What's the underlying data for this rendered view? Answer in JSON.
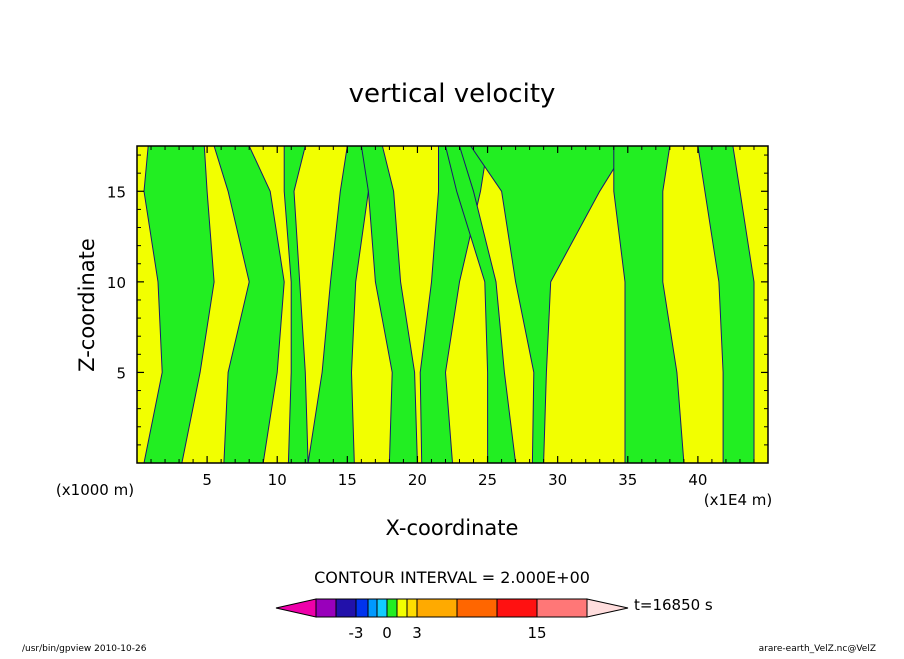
{
  "chart_data": {
    "type": "contour",
    "title": "vertical velocity",
    "xlabel": "X-coordinate",
    "ylabel": "Z-coordinate",
    "x_unit": "(x1E4 m)",
    "y_unit": "(x1000 m)",
    "xlim": [
      0,
      45
    ],
    "ylim": [
      0,
      17.5
    ],
    "x_ticks": [
      5,
      10,
      15,
      20,
      25,
      30,
      35,
      40
    ],
    "y_ticks": [
      5,
      10,
      15
    ],
    "contour_interval_text": "CONTOUR INTERVAL = 2.000E+00",
    "time_label": "t=16850 s",
    "field_colors": {
      "positive": "#f2ff00",
      "negative": "#22ee22",
      "contour": "#1a1a6e"
    },
    "green_regions_x_ranges_at_levels": {
      "levels": [
        0,
        5,
        10,
        15,
        17.5
      ],
      "bands": [
        [
          [
            0.5,
            3.2
          ],
          [
            1.8,
            4.5
          ],
          [
            1.5,
            5.5
          ],
          [
            0.5,
            5.0
          ],
          [
            0.8,
            4.8
          ]
        ],
        [
          [
            6.2,
            9.0
          ],
          [
            6.5,
            10.0
          ],
          [
            8.0,
            10.5
          ],
          [
            6.5,
            9.5
          ],
          [
            5.5,
            8.0
          ]
        ],
        [
          [
            10.8,
            12.2
          ],
          [
            11.0,
            12.0
          ],
          [
            11.0,
            11.6
          ],
          [
            10.5,
            11.2
          ],
          [
            10.5,
            12.0
          ]
        ],
        [
          [
            12.2,
            15.5
          ],
          [
            13.2,
            15.3
          ],
          [
            13.8,
            15.6
          ],
          [
            14.5,
            16.5
          ],
          [
            15.0,
            16.2
          ]
        ],
        [
          [
            18.0,
            20.0
          ],
          [
            18.2,
            19.8
          ],
          [
            17.0,
            18.8
          ],
          [
            16.5,
            18.3
          ],
          [
            16.0,
            17.5
          ]
        ],
        [
          [
            20.3,
            22.5
          ],
          [
            20.2,
            22.0
          ],
          [
            21.0,
            23.0
          ],
          [
            21.5,
            24.5
          ],
          [
            21.5,
            25.0
          ]
        ],
        [
          [
            25.0,
            27.0
          ],
          [
            25.0,
            26.2
          ],
          [
            24.8,
            25.6
          ],
          [
            22.8,
            24.0
          ],
          [
            22.0,
            23.0
          ]
        ],
        [
          [
            28.2,
            29.0
          ],
          [
            28.3,
            29.2
          ],
          [
            27.0,
            29.5
          ],
          [
            26.0,
            33.0
          ],
          [
            23.8,
            35.0
          ]
        ],
        [
          [
            34.8,
            39.0
          ],
          [
            34.8,
            38.5
          ],
          [
            34.8,
            37.5
          ],
          [
            34.0,
            37.5
          ],
          [
            34.0,
            38.0
          ]
        ],
        [
          [
            41.8,
            44.0
          ],
          [
            41.8,
            44.0
          ],
          [
            41.5,
            44.0
          ],
          [
            40.5,
            43.0
          ],
          [
            40.0,
            42.5
          ]
        ]
      ]
    }
  },
  "colorbar": {
    "colors": [
      "#ee00aa",
      "#9900bb",
      "#2211aa",
      "#0033ee",
      "#0099ff",
      "#11ccff",
      "#22ee22",
      "#f2ff00",
      "#ffdd00",
      "#ffaa00",
      "#ff6600",
      "#ff1111",
      "#ff7777",
      "#ffbbbb",
      "#ffdddd"
    ],
    "tick_labels": [
      "-3",
      "0",
      "3",
      "15"
    ]
  },
  "footer": {
    "left": "/usr/bin/gpview  2010-10-26",
    "right": "arare-earth_VelZ.nc@VelZ"
  }
}
